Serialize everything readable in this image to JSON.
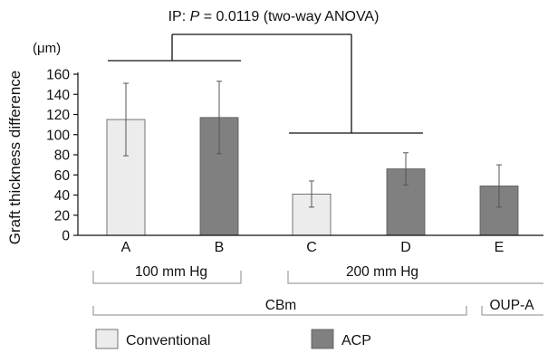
{
  "chart_data": {
    "type": "bar",
    "annotation_top": "IP: P = 0.0119 (two-way ANOVA)",
    "annotation_top_parts": {
      "prefix": "IP: ",
      "italic": "P",
      "suffix": " = 0.0119 (two-way ANOVA)"
    },
    "unit_label": "(μm)",
    "ylabel": "Graft thickness difference",
    "ylim": [
      0,
      160
    ],
    "yticks": [
      0,
      20,
      40,
      60,
      80,
      100,
      120,
      140,
      160
    ],
    "categories": [
      "A",
      "B",
      "C",
      "D",
      "E"
    ],
    "values": [
      115,
      117,
      41,
      66,
      49
    ],
    "error": [
      36,
      36,
      13,
      16,
      21
    ],
    "bar_series": [
      "Conventional",
      "ACP",
      "Conventional",
      "ACP",
      "ACP"
    ],
    "group_labels": [
      {
        "text": "100 mm Hg",
        "spans": [
          "A",
          "B"
        ]
      },
      {
        "text": "200 mm Hg",
        "spans": [
          "C",
          "E"
        ]
      }
    ],
    "group_labels_2": [
      {
        "text": "CBm",
        "spans": [
          "A",
          "D"
        ]
      },
      {
        "text": "OUP-A",
        "spans": [
          "E",
          "E"
        ]
      }
    ],
    "legend": [
      {
        "name": "Conventional",
        "color": "#ececec"
      },
      {
        "name": "ACP",
        "color": "#808080"
      }
    ],
    "legend_position": "bottom",
    "grid": false
  }
}
